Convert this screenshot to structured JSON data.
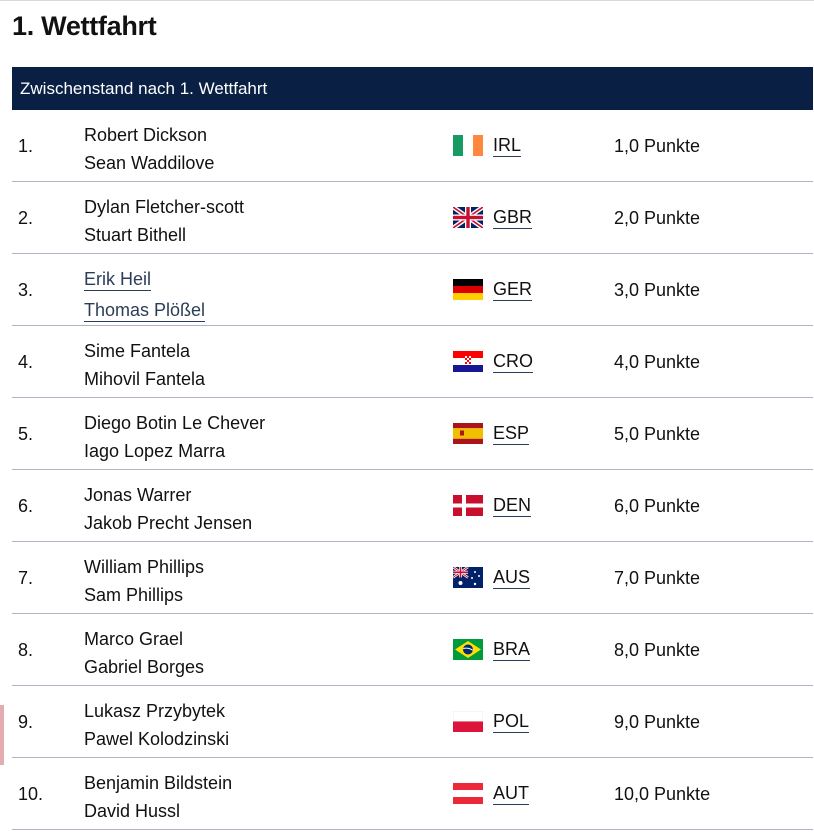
{
  "page": {
    "title": "1. Wettfahrt"
  },
  "table": {
    "header": "Zwischenstand nach 1. Wettfahrt",
    "rows": [
      {
        "rank": "1.",
        "name1": "Robert Dickson",
        "name2": "Sean Waddilove",
        "flag": "flag-ireland-icon",
        "code": "IRL",
        "points": "1,0 Punkte"
      },
      {
        "rank": "2.",
        "name1": "Dylan Fletcher-scott",
        "name2": "Stuart Bithell",
        "flag": "flag-uk-icon",
        "code": "GBR",
        "points": "2,0 Punkte"
      },
      {
        "rank": "3.",
        "name1": "Erik Heil",
        "name2": "Thomas Plößel",
        "flag": "flag-germany-icon",
        "code": "GER",
        "points": "3,0 Punkte"
      },
      {
        "rank": "4.",
        "name1": "Sime Fantela",
        "name2": "Mihovil Fantela",
        "flag": "flag-croatia-icon",
        "code": "CRO",
        "points": "4,0 Punkte"
      },
      {
        "rank": "5.",
        "name1": "Diego Botin Le Chever",
        "name2": "Iago Lopez Marra",
        "flag": "flag-spain-icon",
        "code": "ESP",
        "points": "5,0 Punkte"
      },
      {
        "rank": "6.",
        "name1": "Jonas Warrer",
        "name2": "Jakob Precht Jensen",
        "flag": "flag-denmark-icon",
        "code": "DEN",
        "points": "6,0 Punkte"
      },
      {
        "rank": "7.",
        "name1": "William Phillips",
        "name2": "Sam Phillips",
        "flag": "flag-australia-icon",
        "code": "AUS",
        "points": "7,0 Punkte"
      },
      {
        "rank": "8.",
        "name1": "Marco Grael",
        "name2": "Gabriel Borges",
        "flag": "flag-brazil-icon",
        "code": "BRA",
        "points": "8,0 Punkte"
      },
      {
        "rank": "9.",
        "name1": "Lukasz Przybytek",
        "name2": "Pawel Kolodzinski",
        "flag": "flag-poland-icon",
        "code": "POL",
        "points": "9,0 Punkte"
      },
      {
        "rank": "10.",
        "name1": "Benjamin Bildstein",
        "name2": "David Hussl",
        "flag": "flag-austria-icon",
        "code": "AUT",
        "points": "10,0 Punkte"
      }
    ]
  },
  "colors": {
    "header_bg": "#0a1f44",
    "link": "#2b3d57",
    "row_divider": "#aeb6c4"
  }
}
